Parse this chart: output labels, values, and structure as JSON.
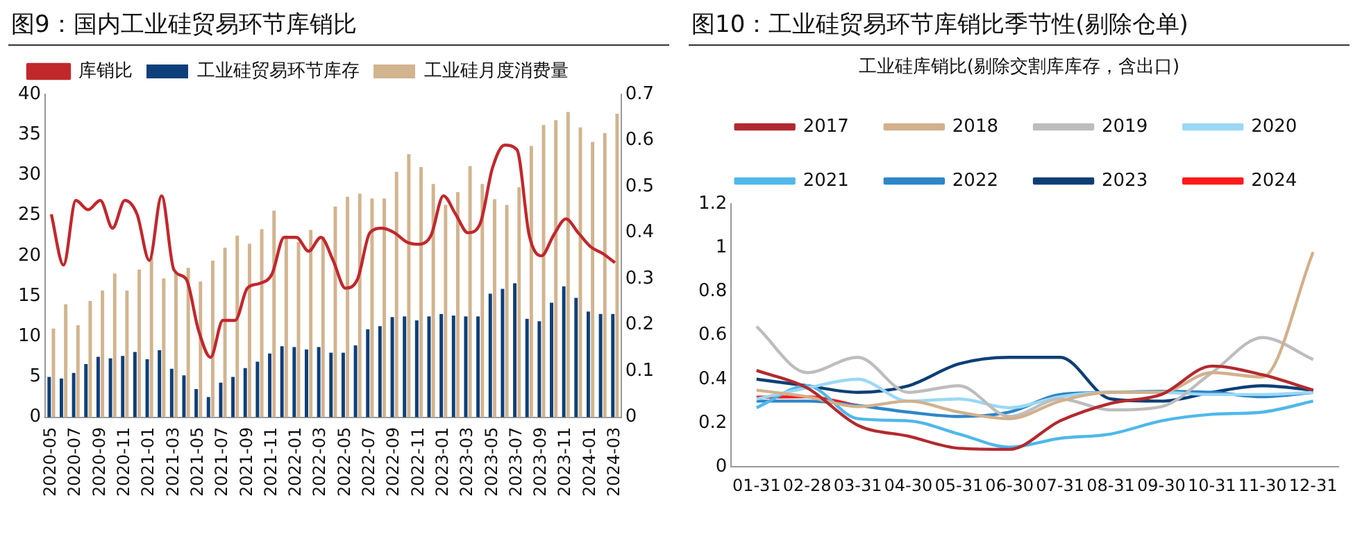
{
  "chart_data": [
    {
      "type": "bar",
      "title": "图9：国内工业硅贸易环节库销比",
      "categories": [
        "2020-05",
        null,
        "2020-07",
        null,
        "2020-09",
        null,
        "2020-11",
        null,
        "2021-01",
        null,
        "2021-03",
        null,
        "2021-05",
        null,
        "2021-07",
        null,
        "2021-09",
        null,
        "2021-11",
        null,
        "2022-01",
        null,
        "2022-03",
        null,
        "2022-05",
        null,
        "2022-07",
        null,
        "2022-09",
        null,
        "2022-11",
        null,
        "2023-01",
        null,
        "2023-03",
        null,
        "2023-05",
        null,
        "2023-07",
        null,
        "2023-09",
        null,
        "2023-11",
        null,
        "2024-01",
        null,
        "2024-03"
      ],
      "series": [
        {
          "name": "工业硅贸易环节库存",
          "color": "#0d3f7a",
          "values": [
            5.0,
            4.8,
            5.5,
            6.6,
            7.5,
            7.3,
            7.6,
            8.1,
            7.2,
            8.3,
            6.0,
            5.2,
            3.5,
            2.5,
            4.3,
            5.0,
            6.1,
            6.9,
            7.9,
            8.8,
            8.7,
            8.4,
            8.7,
            8.0,
            8.0,
            8.9,
            10.9,
            11.3,
            12.4,
            12.5,
            12.0,
            12.5,
            12.8,
            12.6,
            12.5,
            12.5,
            15.3,
            15.9,
            16.6,
            12.2,
            11.9,
            14.2,
            16.2,
            14.8,
            13.1,
            12.8,
            12.8
          ]
        },
        {
          "name": "工业硅月度消费量",
          "color": "#d2b48f",
          "values": [
            11.0,
            14.0,
            11.4,
            14.4,
            15.7,
            17.8,
            15.7,
            18.3,
            19.8,
            17.2,
            18.0,
            18.5,
            16.8,
            19.4,
            21.0,
            22.5,
            21.5,
            23.3,
            25.6,
            22.5,
            21.7,
            23.2,
            22.4,
            26.1,
            27.3,
            27.7,
            27.1,
            27.1,
            30.4,
            32.6,
            31.0,
            28.9,
            26.3,
            27.9,
            31.1,
            28.9,
            27.0,
            26.3,
            28.5,
            33.6,
            36.2,
            36.8,
            37.8,
            35.9,
            34.1,
            35.2,
            37.6
          ]
        },
        {
          "name": "库销比",
          "type": "line",
          "axis": "y2",
          "color": "#c0282d",
          "values": [
            0.44,
            0.33,
            0.47,
            0.45,
            0.47,
            0.41,
            0.47,
            0.44,
            0.34,
            0.48,
            0.32,
            0.3,
            0.19,
            0.13,
            0.21,
            0.21,
            0.28,
            0.29,
            0.31,
            0.39,
            0.39,
            0.36,
            0.39,
            0.34,
            0.28,
            0.3,
            0.4,
            0.41,
            0.4,
            0.38,
            0.375,
            0.395,
            0.48,
            0.44,
            0.4,
            0.42,
            0.54,
            0.59,
            0.58,
            0.395,
            0.35,
            0.395,
            0.43,
            0.4,
            0.37,
            0.355,
            0.335
          ]
        }
      ],
      "ylim": [
        0,
        40
      ],
      "yticks": [
        0,
        5,
        10,
        15,
        20,
        25,
        30,
        35,
        40
      ],
      "y2lim": [
        0,
        0.7
      ],
      "y2ticks": [
        0,
        0.1,
        0.2,
        0.3,
        0.4,
        0.5,
        0.6,
        0.7
      ],
      "legend": "top",
      "marker": "none",
      "grid": false
    },
    {
      "type": "line",
      "title": "图10：工业硅贸易环节库销比季节性(剔除仓单)",
      "subtitle": "工业硅库销比(剔除交割库库存，含出口)",
      "categories": [
        "01-31",
        "02-28",
        "03-31",
        "04-30",
        "05-31",
        "06-30",
        "07-31",
        "08-31",
        "09-30",
        "10-31",
        "11-30",
        "12-31"
      ],
      "series": [
        {
          "name": "2017",
          "color": "#b22a2e",
          "values": [
            0.44,
            0.36,
            0.19,
            0.14,
            0.085,
            0.08,
            0.21,
            0.29,
            0.33,
            0.46,
            0.42,
            0.35
          ]
        },
        {
          "name": "2018",
          "color": "#d2b08c",
          "values": [
            0.35,
            0.32,
            0.275,
            0.3,
            0.25,
            0.22,
            0.3,
            0.34,
            0.34,
            0.43,
            0.41,
            0.98
          ]
        },
        {
          "name": "2019",
          "color": "#bdbdbd",
          "values": [
            0.64,
            0.43,
            0.5,
            0.34,
            0.37,
            0.23,
            0.31,
            0.26,
            0.275,
            0.43,
            0.59,
            0.49
          ]
        },
        {
          "name": "2020",
          "color": "#9ad8f5",
          "values": [
            0.31,
            0.36,
            0.4,
            0.3,
            0.31,
            0.27,
            0.32,
            0.34,
            0.34,
            0.33,
            0.33,
            0.34
          ]
        },
        {
          "name": "2021",
          "color": "#4fb8ea",
          "values": [
            0.27,
            0.37,
            0.22,
            0.21,
            0.15,
            0.09,
            0.13,
            0.15,
            0.21,
            0.24,
            0.25,
            0.3
          ]
        },
        {
          "name": "2022",
          "color": "#2e86c8",
          "values": [
            0.3,
            0.3,
            0.28,
            0.25,
            0.23,
            0.25,
            0.33,
            0.34,
            0.345,
            0.34,
            0.32,
            0.34
          ]
        },
        {
          "name": "2023",
          "color": "#0d3f75",
          "values": [
            0.4,
            0.37,
            0.34,
            0.37,
            0.47,
            0.5,
            0.5,
            0.31,
            0.3,
            0.34,
            0.37,
            0.35
          ]
        },
        {
          "name": "2024",
          "color": "#ff1a1a",
          "values": [
            0.318,
            0.32,
            0.28,
            null,
            null,
            null,
            null,
            null,
            null,
            null,
            null,
            null
          ]
        }
      ],
      "ylim": [
        0,
        1.2
      ],
      "yticks": [
        0,
        0.2,
        0.4,
        0.6,
        0.8,
        1,
        1.2
      ],
      "legend": "top",
      "marker": "none",
      "grid": false
    }
  ]
}
